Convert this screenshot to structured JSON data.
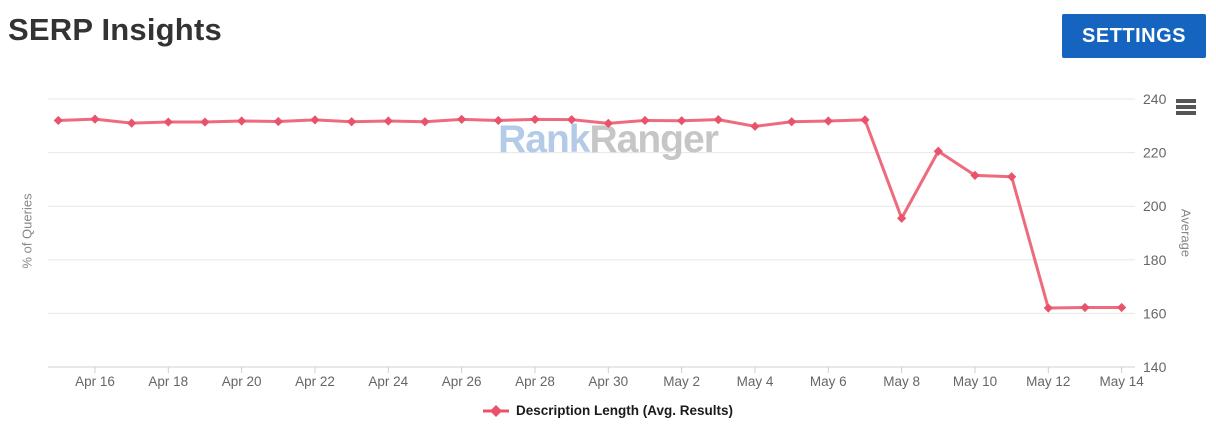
{
  "header": {
    "title": "SERP Insights",
    "settings_button_label": "SETTINGS"
  },
  "watermark": {
    "part1": "Rank",
    "part2": "Ranger"
  },
  "colors": {
    "series": "#e8536b",
    "series_line": "#ee6a7d",
    "button_blue": "#1565c0",
    "gridline": "#e7e7e7",
    "axis_line": "#ccd0d8",
    "axis_label": "#666666",
    "axis_title": "#888888"
  },
  "chart_data": {
    "type": "line",
    "title": "",
    "grid": "horizontal",
    "x": [
      "Apr 15",
      "Apr 16",
      "Apr 17",
      "Apr 18",
      "Apr 19",
      "Apr 20",
      "Apr 21",
      "Apr 22",
      "Apr 23",
      "Apr 24",
      "Apr 25",
      "Apr 26",
      "Apr 27",
      "Apr 28",
      "Apr 29",
      "Apr 30",
      "May 1",
      "May 2",
      "May 3",
      "May 4",
      "May 5",
      "May 6",
      "May 7",
      "May 8",
      "May 9",
      "May 10",
      "May 11",
      "May 12",
      "May 13",
      "May 14"
    ],
    "series": [
      {
        "name": "Description Length (Avg. Results)",
        "color": "#e8536b",
        "values": [
          232.0,
          232.5,
          231.0,
          231.4,
          231.4,
          231.8,
          231.6,
          232.2,
          231.5,
          231.8,
          231.5,
          232.4,
          232.0,
          232.4,
          232.3,
          230.9,
          232.0,
          231.9,
          232.3,
          229.8,
          231.5,
          231.8,
          232.2,
          195.5,
          220.5,
          211.5,
          211.0,
          162.0,
          162.2,
          162.2
        ]
      }
    ],
    "x_tick_labels": [
      "Apr 16",
      "Apr 18",
      "Apr 20",
      "Apr 22",
      "Apr 24",
      "Apr 26",
      "Apr 28",
      "Apr 30",
      "May 2",
      "May 4",
      "May 6",
      "May 8",
      "May 10",
      "May 12",
      "May 14"
    ],
    "y_axis_right": {
      "title": "Average",
      "ticks": [
        240,
        220,
        200,
        180,
        160,
        140
      ],
      "min": 140,
      "max": 240
    },
    "y_axis_left": {
      "title": "% of Queries"
    },
    "legend": {
      "label": "Description Length (Avg. Results)",
      "position": "bottom-center"
    }
  }
}
